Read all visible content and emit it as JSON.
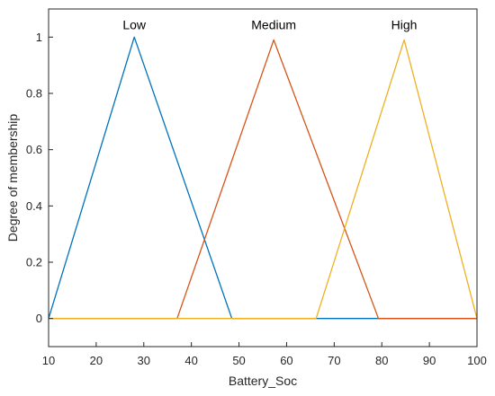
{
  "chart_data": {
    "type": "line",
    "title": "",
    "xlabel": "Battery_Soc",
    "ylabel": "Degree of membership",
    "xlim": [
      10,
      100
    ],
    "ylim": [
      -0.1,
      1.1
    ],
    "xticks": [
      "10",
      "20",
      "30",
      "40",
      "50",
      "60",
      "70",
      "80",
      "90",
      "100"
    ],
    "yticks": [
      "0",
      "0.2",
      "0.4",
      "0.6",
      "0.8",
      "1"
    ],
    "grid": false,
    "series": [
      {
        "name": "Low",
        "color": "#0072BD",
        "x": [
          10,
          28,
          48.5,
          100
        ],
        "y": [
          0,
          1,
          0,
          0
        ]
      },
      {
        "name": "Medium",
        "color": "#D95319",
        "x": [
          10,
          37,
          57.3,
          79.3,
          100
        ],
        "y": [
          0,
          0,
          0.99,
          0,
          0
        ]
      },
      {
        "name": "High",
        "color": "#EDB120",
        "x": [
          10,
          66.2,
          84.7,
          100
        ],
        "y": [
          0,
          0,
          0.99,
          0
        ]
      }
    ]
  }
}
